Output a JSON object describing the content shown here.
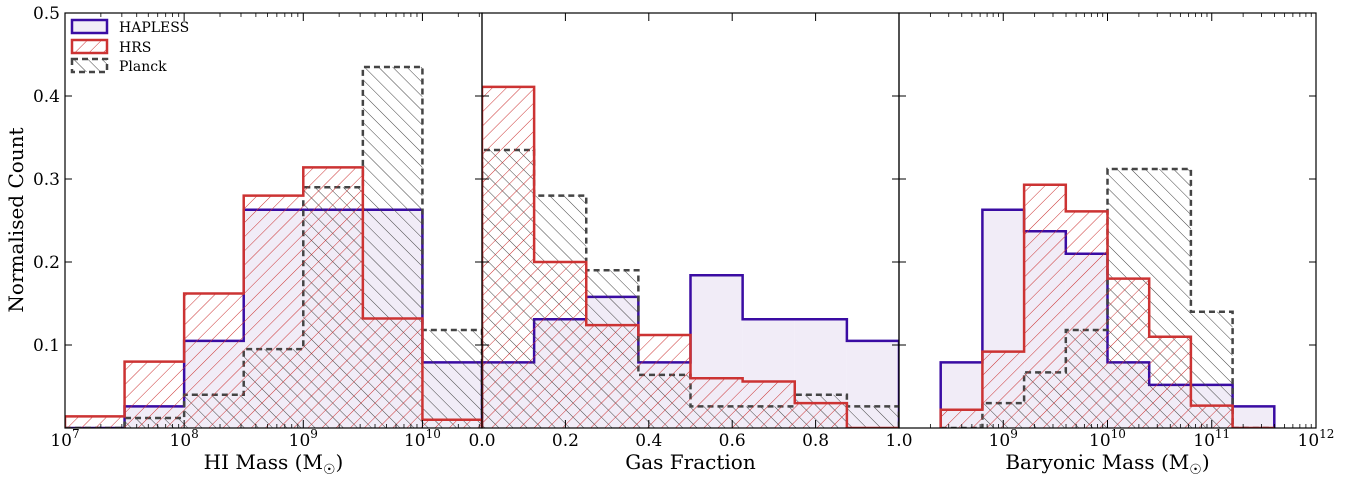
{
  "colors": {
    "hapless": "#3a0ca3",
    "hapless_fill": "#f1ecf7",
    "hrs": "#cc3333",
    "planck": "#444444"
  },
  "legend": {
    "hapless": "HAPLESS",
    "hrs": "HRS",
    "planck": "Planck"
  },
  "ylabel": "Normalised Count",
  "chart_data": [
    {
      "type": "bar",
      "xlabel": "HI Mass (M",
      "xlabel_sub": "☉",
      "xscale": "log",
      "xlim": [
        7,
        10.5
      ],
      "ylim": [
        0,
        0.5
      ],
      "ylabel": "Normalised Count",
      "xticks": [
        {
          "pos": 7,
          "base": "10",
          "exp": "7"
        },
        {
          "pos": 8,
          "base": "10",
          "exp": "8"
        },
        {
          "pos": 9,
          "base": "10",
          "exp": "9"
        },
        {
          "pos": 10,
          "base": "10",
          "exp": "10"
        }
      ],
      "yticks": [
        "0.1",
        "0.2",
        "0.3",
        "0.4",
        "0.5"
      ],
      "yticks_values": [
        0.1,
        0.2,
        0.3,
        0.4,
        0.5
      ],
      "series": [
        {
          "name": "HAPLESS",
          "edges": [
            7.0,
            7.5,
            8.0,
            8.5,
            9.0,
            9.5,
            10.0,
            10.5
          ],
          "values": [
            0.0,
            0.026,
            0.105,
            0.263,
            0.263,
            0.263,
            0.079
          ]
        },
        {
          "name": "HRS",
          "edges": [
            7.0,
            7.5,
            8.0,
            8.5,
            9.0,
            9.5,
            10.0,
            10.5
          ],
          "values": [
            0.014,
            0.08,
            0.162,
            0.28,
            0.314,
            0.132,
            0.01
          ]
        },
        {
          "name": "Planck",
          "edges": [
            7.0,
            7.5,
            8.0,
            8.5,
            9.0,
            9.5,
            10.0,
            10.5
          ],
          "values": [
            0.0,
            0.012,
            0.04,
            0.095,
            0.29,
            0.435,
            0.118
          ]
        }
      ]
    },
    {
      "type": "bar",
      "xlabel": "Gas Fraction",
      "xscale": "linear",
      "xlim": [
        0,
        1
      ],
      "ylim": [
        0,
        0.5
      ],
      "xticks": [
        {
          "pos": 0,
          "base": "0.0"
        },
        {
          "pos": 0.2,
          "base": "0.2"
        },
        {
          "pos": 0.4,
          "base": "0.4"
        },
        {
          "pos": 0.6,
          "base": "0.6"
        },
        {
          "pos": 0.8,
          "base": "0.8"
        },
        {
          "pos": 1.0,
          "base": "1.0"
        }
      ],
      "series": [
        {
          "name": "HAPLESS",
          "edges": [
            0,
            0.125,
            0.25,
            0.375,
            0.5,
            0.625,
            0.75,
            0.875,
            1.0
          ],
          "values": [
            0.079,
            0.131,
            0.158,
            0.079,
            0.184,
            0.131,
            0.131,
            0.105
          ]
        },
        {
          "name": "HRS",
          "edges": [
            0,
            0.125,
            0.25,
            0.375,
            0.5,
            0.625,
            0.75,
            0.875,
            1.0
          ],
          "values": [
            0.411,
            0.2,
            0.124,
            0.112,
            0.06,
            0.056,
            0.03,
            0.0
          ]
        },
        {
          "name": "Planck",
          "edges": [
            0,
            0.125,
            0.25,
            0.375,
            0.5,
            0.625,
            0.75,
            0.875,
            1.0
          ],
          "values": [
            0.335,
            0.28,
            0.19,
            0.064,
            0.026,
            0.026,
            0.04,
            0.026
          ]
        }
      ]
    },
    {
      "type": "bar",
      "xlabel": "Baryonic Mass (M",
      "xlabel_sub": "☉",
      "xscale": "log",
      "xlim": [
        8,
        12
      ],
      "ylim": [
        0,
        0.5
      ],
      "xticks": [
        {
          "pos": 9,
          "base": "10",
          "exp": "9"
        },
        {
          "pos": 10,
          "base": "10",
          "exp": "10"
        },
        {
          "pos": 11,
          "base": "10",
          "exp": "11"
        },
        {
          "pos": 12,
          "base": "10",
          "exp": "12"
        }
      ],
      "series": [
        {
          "name": "HAPLESS",
          "edges": [
            8.4,
            8.8,
            9.2,
            9.6,
            10.0,
            10.4,
            10.8,
            11.2,
            11.6
          ],
          "values": [
            0.079,
            0.263,
            0.237,
            0.21,
            0.079,
            0.052,
            0.052,
            0.026
          ]
        },
        {
          "name": "HRS",
          "edges": [
            8.4,
            8.8,
            9.2,
            9.6,
            10.0,
            10.4,
            10.8,
            11.2,
            11.6
          ],
          "values": [
            0.022,
            0.092,
            0.293,
            0.261,
            0.18,
            0.11,
            0.027,
            0.0
          ]
        },
        {
          "name": "Planck",
          "edges": [
            8.4,
            8.8,
            9.2,
            9.6,
            10.0,
            10.4,
            10.8,
            11.2,
            11.6
          ],
          "values": [
            0.0,
            0.03,
            0.067,
            0.118,
            0.312,
            0.312,
            0.14,
            0.0
          ]
        }
      ]
    }
  ]
}
